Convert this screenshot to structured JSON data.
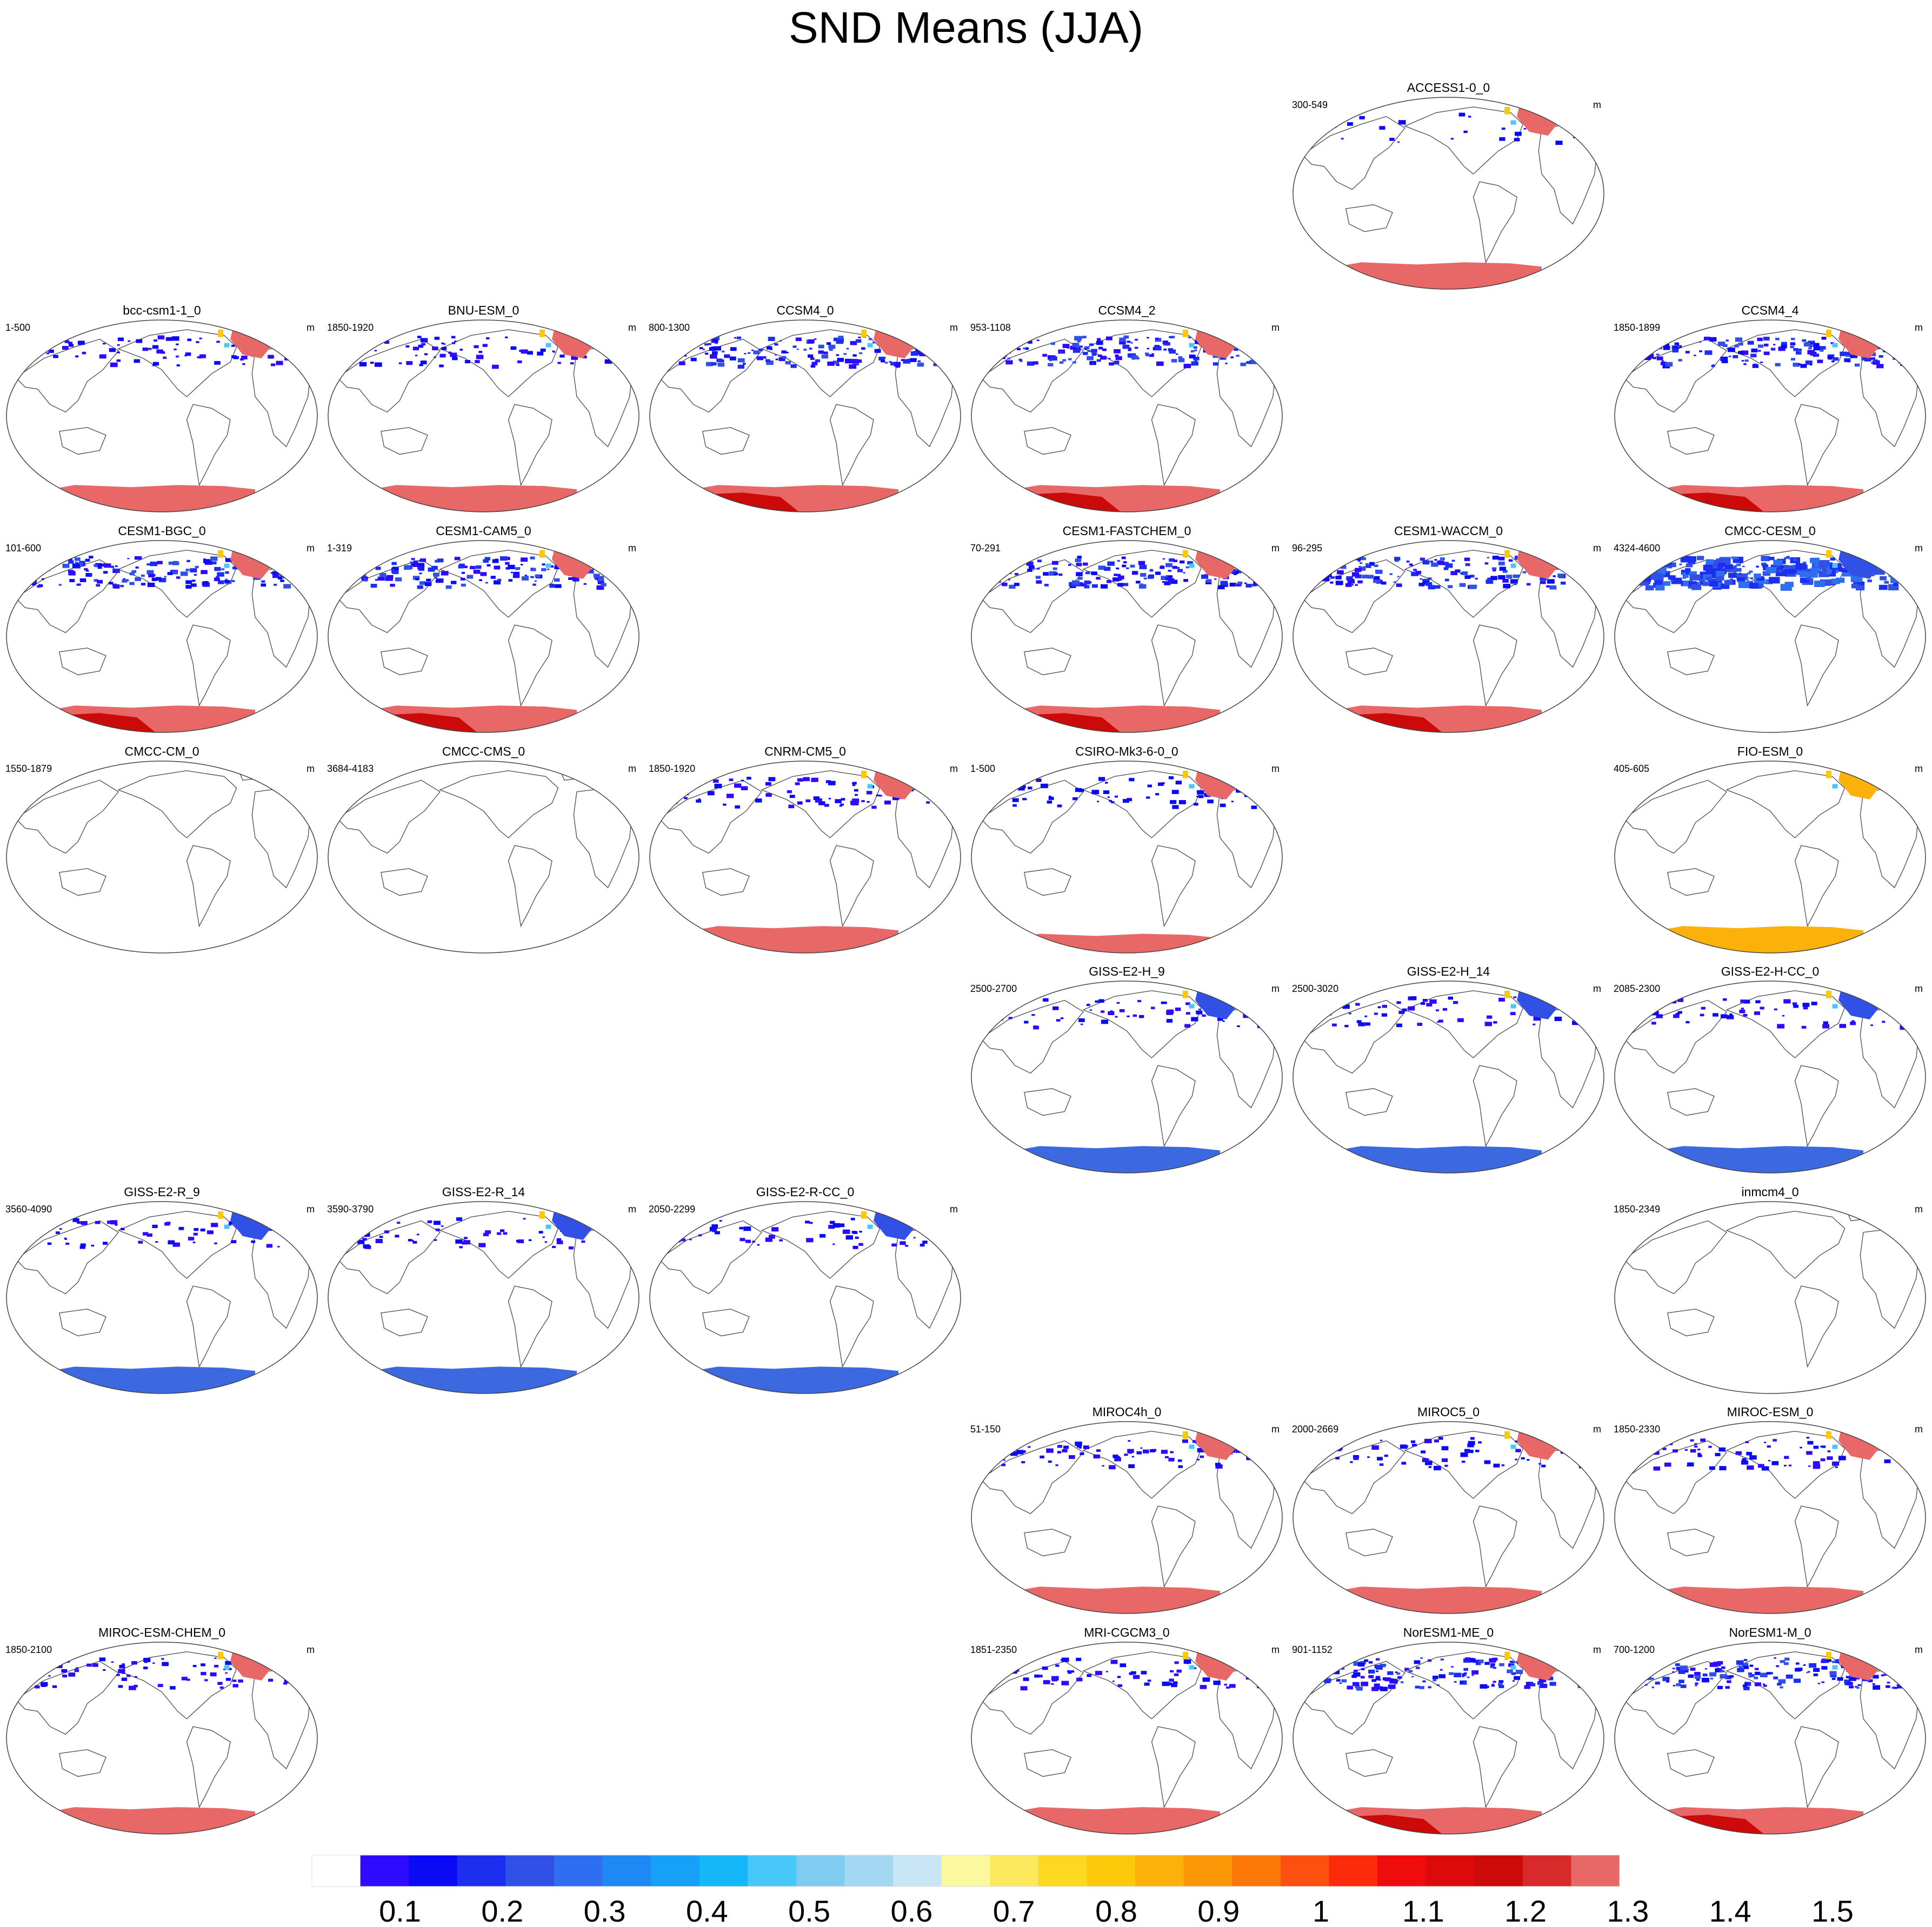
{
  "title": "SND Means (JJA)",
  "chart_data": {
    "type": "map-panels",
    "title": "SND Means (JJA)",
    "variable": "SND",
    "units": "m",
    "projection": "Robinson (Pacific-centered)",
    "panels": [
      {
        "name": "ACCESS1-0_0",
        "years": "300-549",
        "units": "m",
        "row": 0,
        "col": 4,
        "style": "red-arctic"
      },
      {
        "name": "bcc-csm1-1_0",
        "years": "1-500",
        "units": "m",
        "row": 1,
        "col": 0,
        "style": "red-sparse"
      },
      {
        "name": "BNU-ESM_0",
        "years": "1850-1920",
        "units": "m",
        "row": 1,
        "col": 1,
        "style": "red-sparse"
      },
      {
        "name": "CCSM4_0",
        "years": "800-1300",
        "units": "m",
        "row": 1,
        "col": 2,
        "style": "red-heavy"
      },
      {
        "name": "CCSM4_2",
        "years": "953-1108",
        "units": "m",
        "row": 1,
        "col": 3,
        "style": "red-heavy"
      },
      {
        "name": "CCSM4_4",
        "years": "1850-1899",
        "units": "m",
        "row": 1,
        "col": 5,
        "style": "red-heavy"
      },
      {
        "name": "CESM1-BGC_0",
        "years": "101-600",
        "units": "m",
        "row": 2,
        "col": 0,
        "style": "red-heavy"
      },
      {
        "name": "CESM1-CAM5_0",
        "years": "1-319",
        "units": "m",
        "row": 2,
        "col": 1,
        "style": "red-heavy"
      },
      {
        "name": "CESM1-FASTCHEM_0",
        "years": "70-291",
        "units": "m",
        "row": 2,
        "col": 3,
        "style": "red-heavy"
      },
      {
        "name": "CESM1-WACCM_0",
        "years": "96-295",
        "units": "m",
        "row": 2,
        "col": 4,
        "style": "red-heavy"
      },
      {
        "name": "CMCC-CESM_0",
        "years": "4324-4600",
        "units": "m",
        "row": 2,
        "col": 5,
        "style": "blue-band"
      },
      {
        "name": "CMCC-CM_0",
        "years": "1550-1879",
        "units": "m",
        "row": 3,
        "col": 0,
        "style": "empty"
      },
      {
        "name": "CMCC-CMS_0",
        "years": "3684-4183",
        "units": "m",
        "row": 3,
        "col": 1,
        "style": "empty"
      },
      {
        "name": "CNRM-CM5_0",
        "years": "1850-1920",
        "units": "m",
        "row": 3,
        "col": 2,
        "style": "red-sparse"
      },
      {
        "name": "CSIRO-Mk3-6-0_0",
        "years": "1-500",
        "units": "m",
        "row": 3,
        "col": 3,
        "style": "red-thin"
      },
      {
        "name": "FIO-ESM_0",
        "years": "405-605",
        "units": "m",
        "row": 3,
        "col": 5,
        "style": "orange"
      },
      {
        "name": "GISS-E2-H_9",
        "years": "2500-2700",
        "units": "m",
        "row": 4,
        "col": 3,
        "style": "blue-ant"
      },
      {
        "name": "GISS-E2-H_14",
        "years": "2500-3020",
        "units": "m",
        "row": 4,
        "col": 4,
        "style": "blue-ant"
      },
      {
        "name": "GISS-E2-H-CC_0",
        "years": "2085-2300",
        "units": "m",
        "row": 4,
        "col": 5,
        "style": "blue-ant"
      },
      {
        "name": "GISS-E2-R_9",
        "years": "3560-4090",
        "units": "m",
        "row": 5,
        "col": 0,
        "style": "blue-ant"
      },
      {
        "name": "GISS-E2-R_14",
        "years": "3590-3790",
        "units": "m",
        "row": 5,
        "col": 1,
        "style": "blue-ant"
      },
      {
        "name": "GISS-E2-R-CC_0",
        "years": "2050-2299",
        "units": "m",
        "row": 5,
        "col": 2,
        "style": "blue-ant"
      },
      {
        "name": "inmcm4_0",
        "years": "1850-2349",
        "units": "m",
        "row": 5,
        "col": 5,
        "style": "empty"
      },
      {
        "name": "MIROC4h_0",
        "years": "51-150",
        "units": "m",
        "row": 6,
        "col": 3,
        "style": "red-sparse"
      },
      {
        "name": "MIROC5_0",
        "years": "2000-2669",
        "units": "m",
        "row": 6,
        "col": 4,
        "style": "red-sparse"
      },
      {
        "name": "MIROC-ESM_0",
        "years": "1850-2330",
        "units": "m",
        "row": 6,
        "col": 5,
        "style": "red-sparse"
      },
      {
        "name": "MIROC-ESM-CHEM_0",
        "years": "1850-2100",
        "units": "m",
        "row": 7,
        "col": 0,
        "style": "red-sparse"
      },
      {
        "name": "MRI-CGCM3_0",
        "years": "1851-2350",
        "units": "m",
        "row": 7,
        "col": 3,
        "style": "red-sparse"
      },
      {
        "name": "NorESM1-ME_0",
        "years": "901-1152",
        "units": "m",
        "row": 7,
        "col": 4,
        "style": "red-heavy"
      },
      {
        "name": "NorESM1-M_0",
        "years": "700-1200",
        "units": "m",
        "row": 7,
        "col": 5,
        "style": "red-heavy"
      }
    ],
    "colorbar": {
      "levels": [
        0.1,
        0.2,
        0.3,
        0.4,
        0.5,
        0.6,
        0.7,
        0.8,
        0.9,
        1,
        1.1,
        1.2,
        1.3,
        1.4,
        1.5
      ],
      "labels": [
        "0.1",
        "0.2",
        "0.3",
        "0.4",
        "0.5",
        "0.6",
        "0.7",
        "0.8",
        "0.9",
        "1",
        "1.1",
        "1.2",
        "1.3",
        "1.4",
        "1.5"
      ],
      "colors": [
        "#ffffff",
        "#2e0aff",
        "#0a0af5",
        "#1c2ef0",
        "#3050e6",
        "#2f6ef0",
        "#1e88f5",
        "#16a0f8",
        "#14b8f8",
        "#48c8f8",
        "#80ccf0",
        "#a4d8f2",
        "#c8e6f6",
        "#fcf8a0",
        "#fce85c",
        "#fcd820",
        "#fcc80a",
        "#fcb00a",
        "#fc9808",
        "#fc7808",
        "#fc5010",
        "#fc2c0a",
        "#ee0c0c",
        "#dc0a0a",
        "#cc0a0a",
        "#d82a2a",
        "#e86868"
      ]
    }
  }
}
